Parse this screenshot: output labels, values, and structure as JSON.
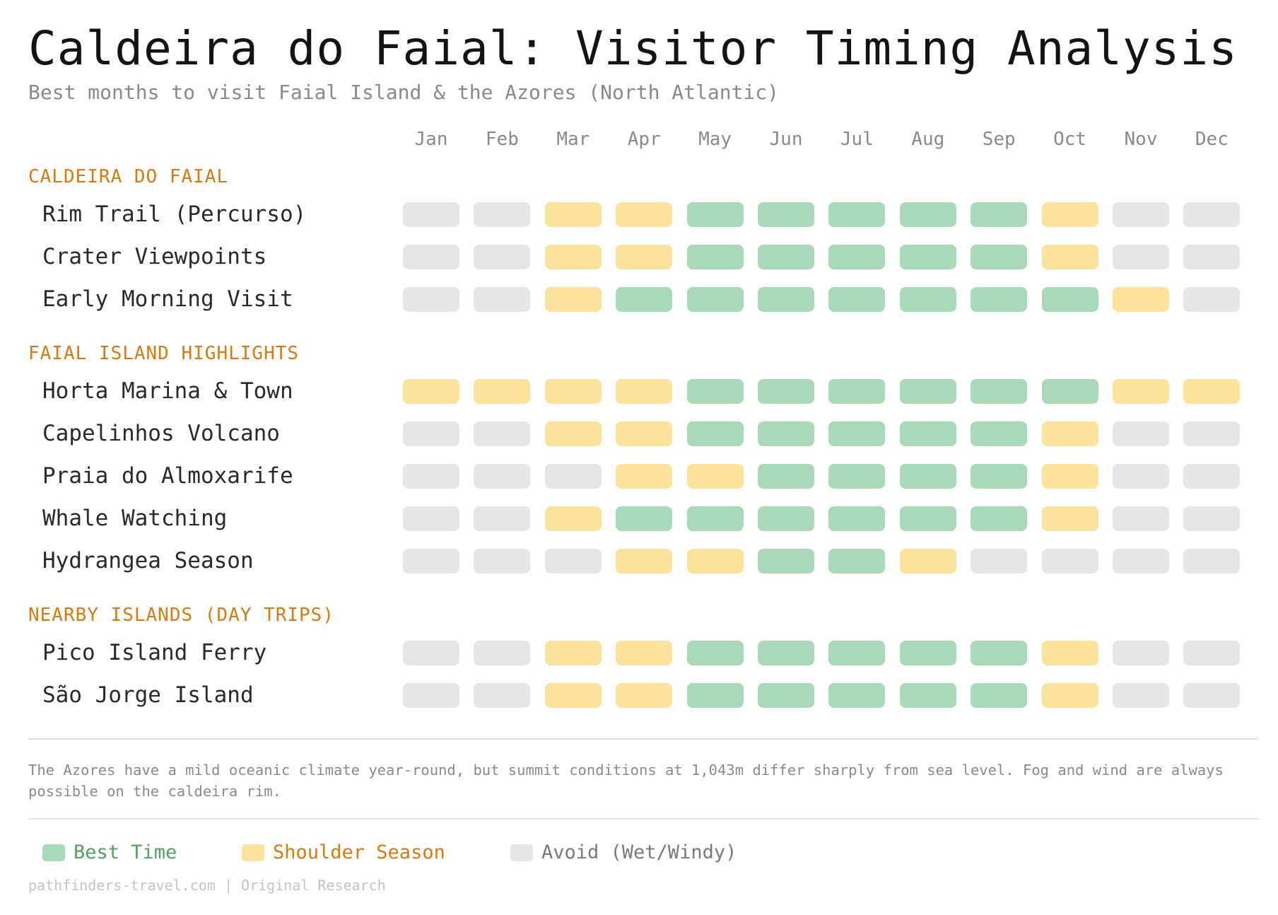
{
  "title": "Caldeira do Faial: Visitor Timing Analysis",
  "subtitle": "Best months to visit Faial Island & the Azores (North Atlantic)",
  "colors": {
    "best": "#a9d9b8",
    "shoulder": "#fbe39c",
    "avoid": "#e6e6e6",
    "section": "#d97a0c"
  },
  "chart_data": {
    "type": "heatmap",
    "months": [
      "Jan",
      "Feb",
      "Mar",
      "Apr",
      "May",
      "Jun",
      "Jul",
      "Aug",
      "Sep",
      "Oct",
      "Nov",
      "Dec"
    ],
    "levels": {
      "B": "Best Time",
      "S": "Shoulder Season",
      "A": "Avoid (Wet/Windy)"
    },
    "sections": [
      {
        "name": "CALDEIRA DO FAIAL",
        "rows": [
          {
            "label": "Rim Trail (Percurso)",
            "values": [
              "A",
              "A",
              "S",
              "S",
              "B",
              "B",
              "B",
              "B",
              "B",
              "S",
              "A",
              "A"
            ]
          },
          {
            "label": "Crater Viewpoints",
            "values": [
              "A",
              "A",
              "S",
              "S",
              "B",
              "B",
              "B",
              "B",
              "B",
              "S",
              "A",
              "A"
            ]
          },
          {
            "label": "Early Morning Visit",
            "values": [
              "A",
              "A",
              "S",
              "B",
              "B",
              "B",
              "B",
              "B",
              "B",
              "B",
              "S",
              "A"
            ]
          }
        ]
      },
      {
        "name": "FAIAL ISLAND HIGHLIGHTS",
        "rows": [
          {
            "label": "Horta Marina & Town",
            "values": [
              "S",
              "S",
              "S",
              "S",
              "B",
              "B",
              "B",
              "B",
              "B",
              "B",
              "S",
              "S"
            ]
          },
          {
            "label": "Capelinhos Volcano",
            "values": [
              "A",
              "A",
              "S",
              "S",
              "B",
              "B",
              "B",
              "B",
              "B",
              "S",
              "A",
              "A"
            ]
          },
          {
            "label": "Praia do Almoxarife",
            "values": [
              "A",
              "A",
              "A",
              "S",
              "S",
              "B",
              "B",
              "B",
              "B",
              "S",
              "A",
              "A"
            ]
          },
          {
            "label": "Whale Watching",
            "values": [
              "A",
              "A",
              "S",
              "B",
              "B",
              "B",
              "B",
              "B",
              "B",
              "S",
              "A",
              "A"
            ]
          },
          {
            "label": "Hydrangea Season",
            "values": [
              "A",
              "A",
              "A",
              "S",
              "S",
              "B",
              "B",
              "S",
              "A",
              "A",
              "A",
              "A"
            ]
          }
        ]
      },
      {
        "name": "NEARBY ISLANDS (DAY TRIPS)",
        "rows": [
          {
            "label": "Pico Island Ferry",
            "values": [
              "A",
              "A",
              "S",
              "S",
              "B",
              "B",
              "B",
              "B",
              "B",
              "S",
              "A",
              "A"
            ]
          },
          {
            "label": "São Jorge Island",
            "values": [
              "A",
              "A",
              "S",
              "S",
              "B",
              "B",
              "B",
              "B",
              "B",
              "S",
              "A",
              "A"
            ]
          }
        ]
      }
    ]
  },
  "note": "The Azores have a mild oceanic climate year-round, but summit conditions at 1,043m differ sharply from sea level. Fog and wind are always possible on the caldeira rim.",
  "legend": [
    {
      "label": "Best Time",
      "color": "#4fa35e"
    },
    {
      "label": "Shoulder Season",
      "color": "#d97a0c"
    },
    {
      "label": "Avoid (Wet/Windy)",
      "color": "#7a7a7a"
    }
  ],
  "footer": "pathfinders-travel.com | Original Research"
}
